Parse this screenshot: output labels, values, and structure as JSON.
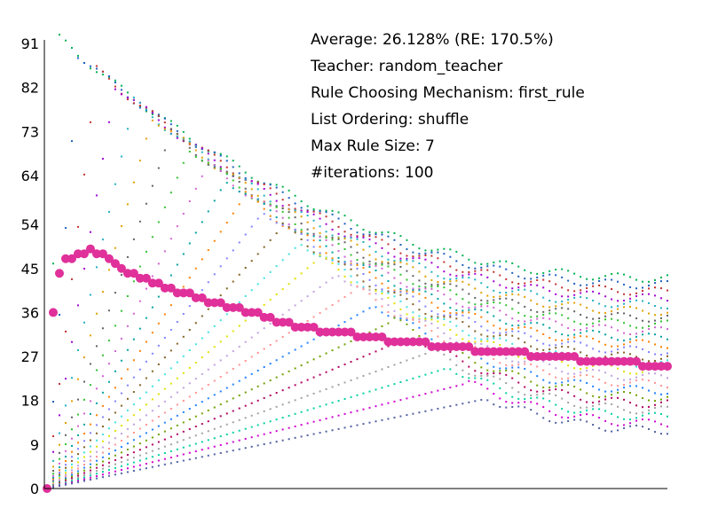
{
  "chart_data": {
    "type": "scatter",
    "title": "",
    "xlabel": "",
    "ylabel": "",
    "ylim": [
      0,
      91
    ],
    "xlim": [
      0,
      100
    ],
    "yticks": [
      0,
      9,
      18,
      27,
      36,
      45,
      54,
      64,
      73,
      82,
      91
    ],
    "ytick_labels": [
      "0",
      "9",
      "18",
      "27",
      "36",
      "45",
      "54",
      "64",
      "73",
      "82",
      "91"
    ],
    "grid": false,
    "legend": "none",
    "info_lines": [
      "Average: 26.128% (RE: 170.5%)",
      "Teacher: random_teacher",
      "Rule Choosing Mechanism: first_rule",
      "List Ordering: shuffle",
      "Max Rule Size: 7",
      "#iterations: 100"
    ],
    "average_series": {
      "color": "#e0309a",
      "x": [
        0,
        1,
        2,
        3,
        4,
        5,
        6,
        7,
        8,
        9,
        10,
        11,
        12,
        13,
        14,
        15,
        16,
        17,
        18,
        19,
        20,
        21,
        22,
        23,
        24,
        25,
        26,
        27,
        28,
        29,
        30,
        31,
        32,
        33,
        34,
        35,
        36,
        37,
        38,
        39,
        40,
        41,
        42,
        43,
        44,
        45,
        46,
        47,
        48,
        49,
        50,
        51,
        52,
        53,
        54,
        55,
        56,
        57,
        58,
        59,
        60,
        61,
        62,
        63,
        64,
        65,
        66,
        67,
        68,
        69,
        70,
        71,
        72,
        73,
        74,
        75,
        76,
        77,
        78,
        79,
        80,
        81,
        82,
        83,
        84,
        85,
        86,
        87,
        88,
        89,
        90,
        91,
        92,
        93,
        94,
        95,
        96,
        97,
        98,
        99,
        100
      ],
      "y": [
        0,
        36,
        44,
        47,
        47,
        48,
        48,
        49,
        48,
        48,
        47,
        46,
        45,
        44,
        44,
        43,
        43,
        42,
        42,
        41,
        41,
        40,
        40,
        40,
        39,
        39,
        38,
        38,
        38,
        37,
        37,
        37,
        36,
        36,
        36,
        35,
        35,
        34,
        34,
        34,
        33,
        33,
        33,
        33,
        32,
        32,
        32,
        32,
        32,
        32,
        31,
        31,
        31,
        31,
        31,
        30,
        30,
        30,
        30,
        30,
        30,
        30,
        29,
        29,
        29,
        29,
        29,
        29,
        29,
        28,
        28,
        28,
        28,
        28,
        28,
        28,
        28,
        28,
        27,
        27,
        27,
        27,
        27,
        27,
        27,
        27,
        26,
        26,
        26,
        26,
        26,
        26,
        26,
        26,
        26,
        26,
        25,
        25,
        25,
        25,
        25
      ]
    },
    "series_colors": [
      "#00b050",
      "#1f5fbf",
      "#c03030",
      "#a000d0",
      "#20b0c0",
      "#e0a000",
      "#606060",
      "#30c030",
      "#d060d0",
      "#00a0a0",
      "#ff8000",
      "#8080ff",
      "#806020",
      "#40e0e0",
      "#e0e000",
      "#c0a0e0",
      "#ff9090",
      "#2080ff",
      "#70a000",
      "#b00060",
      "#a0a0a0",
      "#00d0a0",
      "#d000d0",
      "#5060a0"
    ]
  }
}
